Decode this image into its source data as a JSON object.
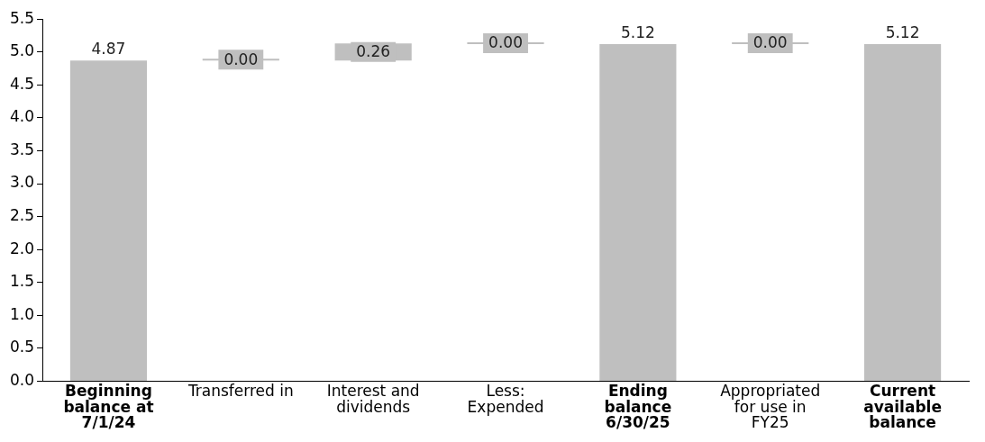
{
  "chart_data": {
    "type": "bar",
    "categories": [
      "Beginning balance at 7/1/24",
      "Transferred in",
      "Interest and dividends",
      "Less: Expended",
      "Ending balance 6/30/25",
      "Appropriated for use in FY25",
      "Current available balance"
    ],
    "values": [
      4.87,
      0,
      0.26,
      0,
      5.12,
      0,
      5.12
    ],
    "base": [
      0,
      4.87,
      4.87,
      5.12,
      0,
      5.12,
      0
    ],
    "color": "#bfbfbf",
    "value_labels": [
      "4.87",
      "0.00",
      "0.26",
      "0.00",
      "5.12",
      "0.00",
      "5.12"
    ],
    "ylim": [
      0,
      5.5
    ],
    "yticks": [
      {
        "value": 0,
        "label": "0.0"
      },
      {
        "value": 0.5,
        "label": "0.5"
      },
      {
        "value": 1,
        "label": "1.0"
      },
      {
        "value": 1.5,
        "label": "1.5"
      },
      {
        "value": 2,
        "label": "2.0"
      },
      {
        "value": 2.5,
        "label": "2.5"
      },
      {
        "value": 3,
        "label": "3.0"
      },
      {
        "value": 3.5,
        "label": "3.5"
      },
      {
        "value": 4,
        "label": "4.0"
      },
      {
        "value": 4.5,
        "label": "4.5"
      },
      {
        "value": 5,
        "label": "5.0"
      },
      {
        "value": 5.5,
        "label": "5.5"
      }
    ],
    "grid": false,
    "legend": false
  }
}
